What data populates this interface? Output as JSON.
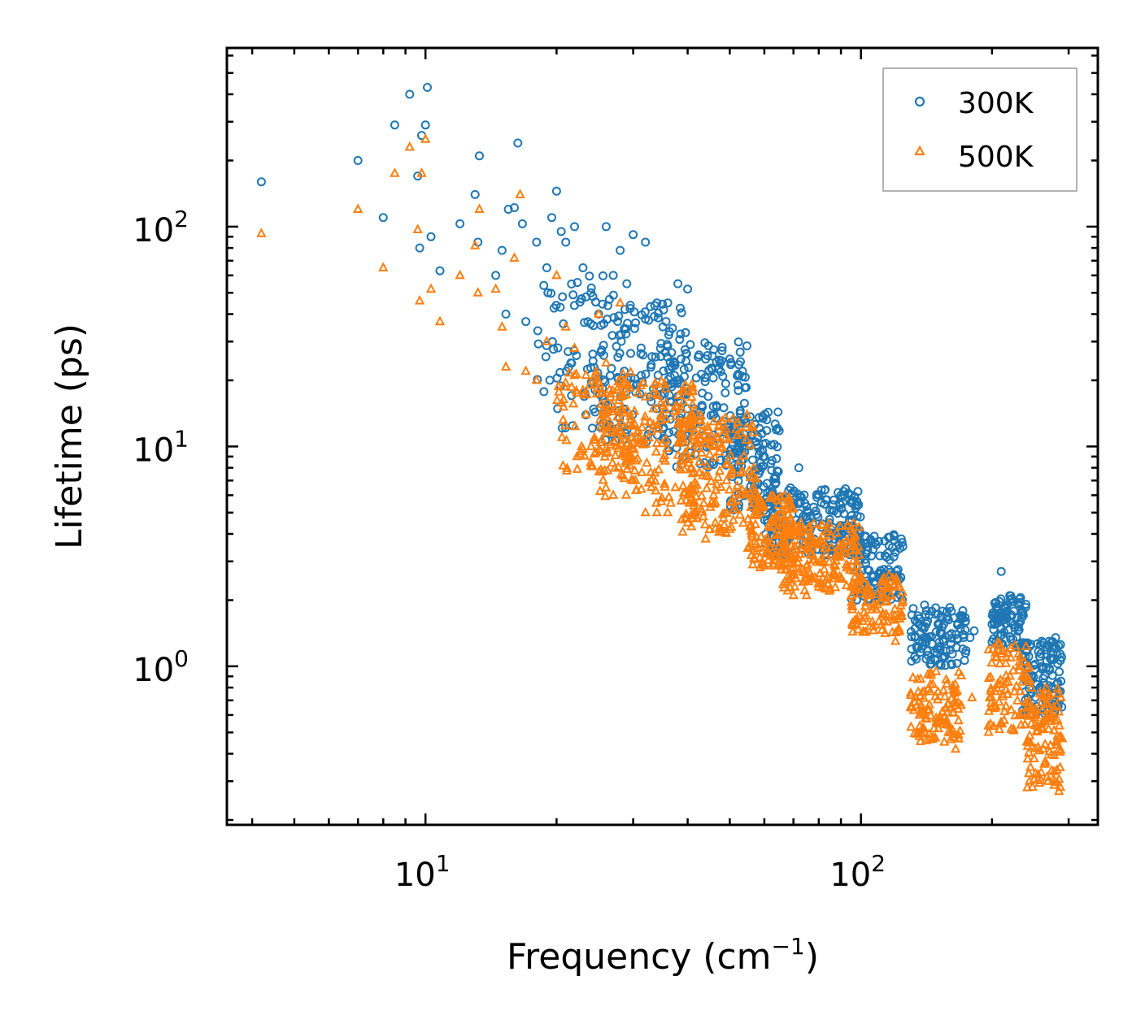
{
  "chart_data": {
    "type": "scatter",
    "title": "",
    "xlabel": "Frequency (cm",
    "xlabel_sup": "−1",
    "xlabel_close": ")",
    "ylabel": "Lifetime (ps)",
    "xscale": "log",
    "yscale": "log",
    "xlim": [
      3.5,
      350
    ],
    "ylim": [
      0.19,
      650
    ],
    "x_ticks": [
      {
        "value": 10,
        "base": "10",
        "exp": "1"
      },
      {
        "value": 100,
        "base": "10",
        "exp": "2"
      }
    ],
    "y_ticks": [
      {
        "value": 1,
        "base": "10",
        "exp": "0"
      },
      {
        "value": 10,
        "base": "10",
        "exp": "1"
      },
      {
        "value": 100,
        "base": "10",
        "exp": "2"
      }
    ],
    "legend_position": "top-right",
    "series": [
      {
        "name": "300K",
        "marker": "circle",
        "color": "#1f77b4",
        "points": [
          [
            4.2,
            160
          ],
          [
            7,
            200
          ],
          [
            8,
            110
          ],
          [
            8.5,
            290
          ],
          [
            9.2,
            400
          ],
          [
            9.6,
            170
          ],
          [
            9.7,
            80
          ],
          [
            9.8,
            260
          ],
          [
            10,
            290
          ],
          [
            10.1,
            430
          ],
          [
            10.3,
            90
          ],
          [
            10.8,
            63
          ],
          [
            12,
            103
          ],
          [
            13,
            140
          ],
          [
            13.2,
            85
          ],
          [
            13.3,
            210
          ],
          [
            14.5,
            60
          ],
          [
            15,
            78
          ],
          [
            15.3,
            40
          ],
          [
            15.5,
            120
          ],
          [
            16,
            122
          ],
          [
            16.3,
            240
          ],
          [
            16.7,
            103
          ],
          [
            17,
            37
          ],
          [
            18,
            85
          ],
          [
            19,
            65
          ],
          [
            19.5,
            110
          ],
          [
            20,
            145
          ],
          [
            20.5,
            95
          ],
          [
            21,
            85
          ],
          [
            22,
            100
          ],
          [
            23,
            65
          ],
          [
            24,
            50
          ],
          [
            25,
            40
          ],
          [
            26,
            100
          ],
          [
            27,
            60
          ],
          [
            28,
            78
          ],
          [
            29,
            55
          ],
          [
            30,
            92
          ],
          [
            32,
            85
          ],
          [
            34,
            45
          ],
          [
            36,
            45
          ],
          [
            38,
            55
          ],
          [
            40,
            52
          ],
          [
            44,
            25
          ],
          [
            50,
            25
          ],
          [
            60,
            9
          ],
          [
            64,
            8.8
          ],
          [
            72,
            8
          ],
          [
            80,
            6
          ],
          [
            90,
            6
          ],
          [
            95,
            6
          ],
          [
            110,
            3.7
          ],
          [
            120,
            3.3
          ],
          [
            140,
            1.9
          ],
          [
            160,
            1.85
          ],
          [
            178,
            1.35
          ],
          [
            182,
            1.45
          ],
          [
            210,
            2.7
          ],
          [
            220,
            2.0
          ],
          [
            260,
            1.3
          ],
          [
            280,
            1.35
          ]
        ],
        "bands": [
          {
            "x": [
              18,
              28
            ],
            "ymin": 12,
            "ymax": 60,
            "n": 80
          },
          {
            "x": [
              25,
              40
            ],
            "ymin": 10,
            "ymax": 45,
            "n": 140
          },
          {
            "x": [
              35,
              55
            ],
            "ymin": 8,
            "ymax": 30,
            "n": 160
          },
          {
            "x": [
              50,
              65
            ],
            "ymin": 5,
            "ymax": 15,
            "n": 120
          },
          {
            "x": [
              60,
              100
            ],
            "ymin": 3.2,
            "ymax": 6.5,
            "n": 220
          },
          {
            "x": [
              95,
              125
            ],
            "ymin": 2.0,
            "ymax": 4.0,
            "n": 120
          },
          {
            "x": [
              130,
              175
            ],
            "ymin": 1.0,
            "ymax": 1.85,
            "n": 120
          },
          {
            "x": [
              200,
              240
            ],
            "ymin": 1.2,
            "ymax": 2.1,
            "n": 90
          },
          {
            "x": [
              235,
              290
            ],
            "ymin": 0.6,
            "ymax": 1.3,
            "n": 110
          }
        ]
      },
      {
        "name": "500K",
        "marker": "triangle",
        "color": "#ff7f0e",
        "points": [
          [
            4.2,
            93
          ],
          [
            7,
            120
          ],
          [
            8,
            65
          ],
          [
            8.5,
            175
          ],
          [
            9.2,
            230
          ],
          [
            9.6,
            97
          ],
          [
            9.7,
            46
          ],
          [
            9.8,
            175
          ],
          [
            10,
            250
          ],
          [
            10.3,
            52
          ],
          [
            10.8,
            37
          ],
          [
            12,
            60
          ],
          [
            13,
            82
          ],
          [
            13.2,
            50
          ],
          [
            13.3,
            120
          ],
          [
            14.5,
            52
          ],
          [
            15,
            35
          ],
          [
            15.3,
            23
          ],
          [
            16,
            72
          ],
          [
            16.5,
            140
          ],
          [
            17,
            22
          ],
          [
            18,
            20
          ],
          [
            19,
            30
          ],
          [
            20,
            60
          ],
          [
            21,
            35
          ],
          [
            22,
            28
          ],
          [
            23,
            18
          ],
          [
            24,
            10
          ],
          [
            25,
            40
          ],
          [
            26,
            24
          ],
          [
            27,
            6
          ],
          [
            28,
            45
          ],
          [
            30,
            7
          ],
          [
            32,
            5
          ],
          [
            34,
            5
          ],
          [
            36,
            5
          ],
          [
            40,
            4.5
          ],
          [
            44,
            3.8
          ],
          [
            50,
            4.2
          ],
          [
            60,
            3.6
          ],
          [
            70,
            2.1
          ],
          [
            75,
            2.1
          ],
          [
            80,
            2.3
          ],
          [
            90,
            2.5
          ],
          [
            110,
            1.6
          ],
          [
            120,
            1.3
          ],
          [
            140,
            0.5
          ],
          [
            150,
            0.55
          ],
          [
            165,
            0.42
          ],
          [
            180,
            0.72
          ],
          [
            200,
            0.65
          ],
          [
            260,
            0.55
          ],
          [
            285,
            0.27
          ]
        ],
        "bands": [
          {
            "x": [
              20,
              30
            ],
            "ymin": 7,
            "ymax": 22,
            "n": 110
          },
          {
            "x": [
              25,
              42
            ],
            "ymin": 5.5,
            "ymax": 20,
            "n": 180
          },
          {
            "x": [
              38,
              58
            ],
            "ymin": 4,
            "ymax": 14,
            "n": 180
          },
          {
            "x": [
              55,
              70
            ],
            "ymin": 2.8,
            "ymax": 6,
            "n": 120
          },
          {
            "x": [
              65,
              100
            ],
            "ymin": 2.2,
            "ymax": 4.5,
            "n": 200
          },
          {
            "x": [
              95,
              125
            ],
            "ymin": 1.4,
            "ymax": 2.6,
            "n": 110
          },
          {
            "x": [
              130,
              170
            ],
            "ymin": 0.45,
            "ymax": 0.95,
            "n": 110
          },
          {
            "x": [
              195,
              245
            ],
            "ymin": 0.5,
            "ymax": 1.3,
            "n": 90
          },
          {
            "x": [
              240,
              290
            ],
            "ymin": 0.28,
            "ymax": 0.8,
            "n": 110
          }
        ]
      }
    ]
  }
}
